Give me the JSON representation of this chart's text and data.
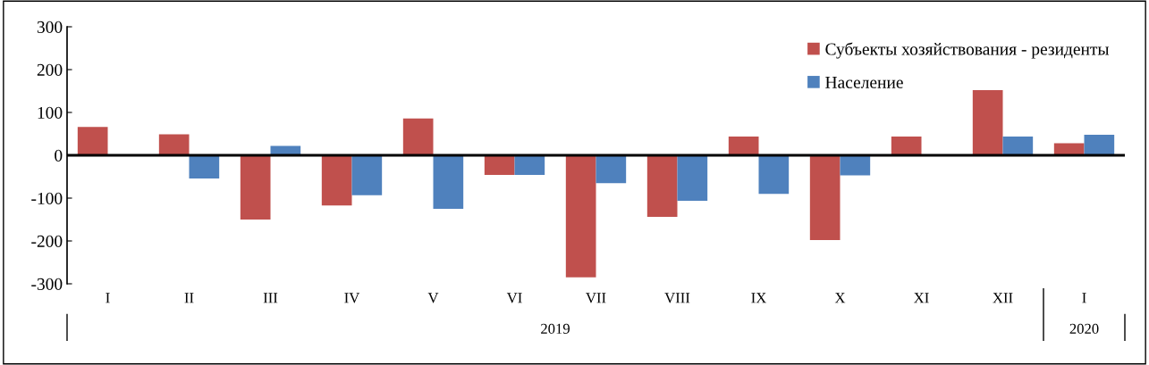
{
  "chart_data": {
    "type": "bar",
    "categories": [
      "I",
      "II",
      "III",
      "IV",
      "V",
      "VI",
      "VII",
      "VIII",
      "IX",
      "X",
      "XI",
      "XII",
      "I"
    ],
    "series": [
      {
        "name": "Субъекты хозяйствования - резиденты",
        "color": "#c0504d",
        "values": [
          66,
          49,
          -150,
          -117,
          86,
          -46,
          -285,
          -144,
          44,
          -198,
          44,
          152,
          28
        ]
      },
      {
        "name": "Население",
        "color": "#4f81bd",
        "values": [
          null,
          -54,
          22,
          -93,
          -125,
          -46,
          -65,
          -106,
          -90,
          -47,
          null,
          44,
          48
        ]
      }
    ],
    "ylim": [
      -300,
      300
    ],
    "yticks": [
      -300,
      -200,
      -100,
      0,
      100,
      200,
      300
    ],
    "annotations": [
      "2019",
      "2020"
    ],
    "ref_lines": [
      {
        "axis": "y",
        "value": 0,
        "color": "#000000"
      }
    ],
    "grid": false,
    "legend": "top right"
  }
}
